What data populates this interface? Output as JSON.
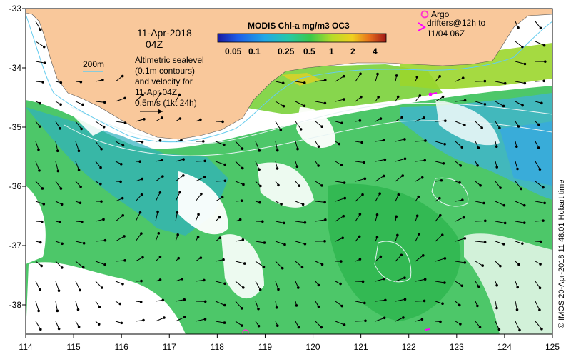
{
  "map": {
    "date_line1": "11-Apr-2018",
    "date_line2": "04Z",
    "product_title": "MODIS Chl-a mg/m3 OC3",
    "colorbar_labels": [
      "0.05",
      "0.1",
      "0.25",
      "0.5",
      "1",
      "2",
      "4"
    ],
    "contour_label": "200m",
    "sealevel_text": [
      "Altimetric sealevel",
      "(0.1m contours)",
      "and velocity for",
      "11-Apr 04Z",
      "0.5m/s (1kt 24h)"
    ],
    "argo_label": "Argo",
    "drifter_text": [
      "drifters@12h to",
      "11/04 06Z"
    ],
    "credit": "© IMOS 20-Apr-2018 11:48:01 Hobart time",
    "x_ticks": [
      "114",
      "115",
      "116",
      "117",
      "118",
      "119",
      "120",
      "121",
      "122",
      "123",
      "124",
      "125"
    ],
    "y_ticks": [
      "-33",
      "-34",
      "-35",
      "-36",
      "-37",
      "-38"
    ],
    "colors": {
      "land": "#f9c89b",
      "ocean": "#ffffff",
      "chl_low": "#22bb55",
      "chl_mid": "#66cc33",
      "chl_blue": "#2fb0d6",
      "contour_200m": "#66ccee",
      "argo": "#ff33cc",
      "drifter": "#ff00ff"
    }
  }
}
